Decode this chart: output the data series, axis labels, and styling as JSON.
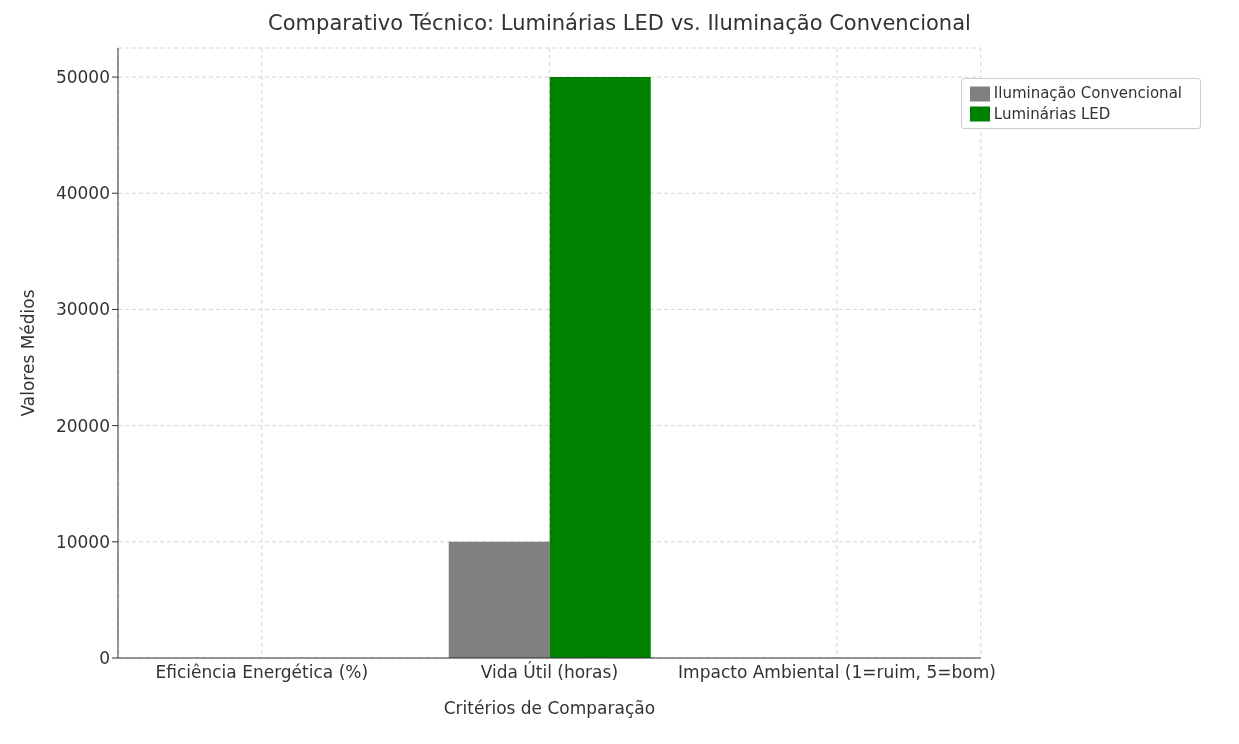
{
  "chart_data": {
    "type": "bar",
    "title": "Comparativo Técnico: Luminárias LED vs. Iluminação Convencional",
    "xlabel": "Critérios de Comparação",
    "ylabel": "Valores Médios",
    "categories": [
      "Eficiência Energética (%)",
      "Vida Útil (horas)",
      "Impacto Ambiental (1=ruim, 5=bom)"
    ],
    "series": [
      {
        "name": "Iluminação Convencional",
        "color": "#808080",
        "values": [
          0,
          10000,
          0
        ]
      },
      {
        "name": "Luminárias LED",
        "color": "#008000",
        "values": [
          0,
          50000,
          0
        ]
      }
    ],
    "ylim": [
      0,
      52500
    ],
    "yticks": [
      0,
      10000,
      20000,
      30000,
      40000,
      50000
    ],
    "grid": true,
    "legend": "top right"
  }
}
